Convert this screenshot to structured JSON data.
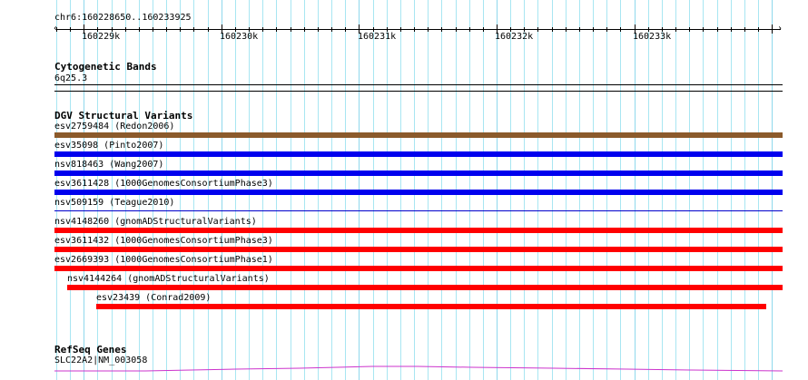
{
  "ruler": {
    "location": "chr6:160228650..160233925",
    "start": 160228650,
    "end": 160233925,
    "major_labels": [
      "160229k",
      "160230k",
      "160231k",
      "160232k",
      "160233k"
    ]
  },
  "tracks": {
    "cytogenetic": {
      "title": "Cytogenetic Bands",
      "band": "6q25.3"
    },
    "dgv": {
      "title": "DGV Structural Variants",
      "variants": [
        {
          "label": "esv2759484 (Redon2006)",
          "color": "#8b5a2b"
        },
        {
          "label": "esv35098 (Pinto2007)",
          "color": "#0000ee"
        },
        {
          "label": "nsv818463 (Wang2007)",
          "color": "#0000ee"
        },
        {
          "label": "esv3611428 (1000GenomesConsortiumPhase3)",
          "color": "#0000ee"
        },
        {
          "label": "nsv509159 (Teague2010)",
          "color": "#0000cc"
        },
        {
          "label": "nsv4148260 (gnomADStructuralVariants)",
          "color": "#ff0000"
        },
        {
          "label": "esv3611432 (1000GenomesConsortiumPhase3)",
          "color": "#ff0000"
        },
        {
          "label": "esv2669393 (1000GenomesConsortiumPhase1)",
          "color": "#ff0000"
        },
        {
          "label": "nsv4144264 (gnomADStructuralVariants)",
          "color": "#ff0000"
        },
        {
          "label": "esv23439 (Conrad2009)",
          "color": "#ff0000"
        }
      ]
    },
    "refseq": {
      "title": "RefSeq Genes",
      "gene_label": "SLC22A2|NM_003058",
      "color": "#cc33cc"
    }
  }
}
